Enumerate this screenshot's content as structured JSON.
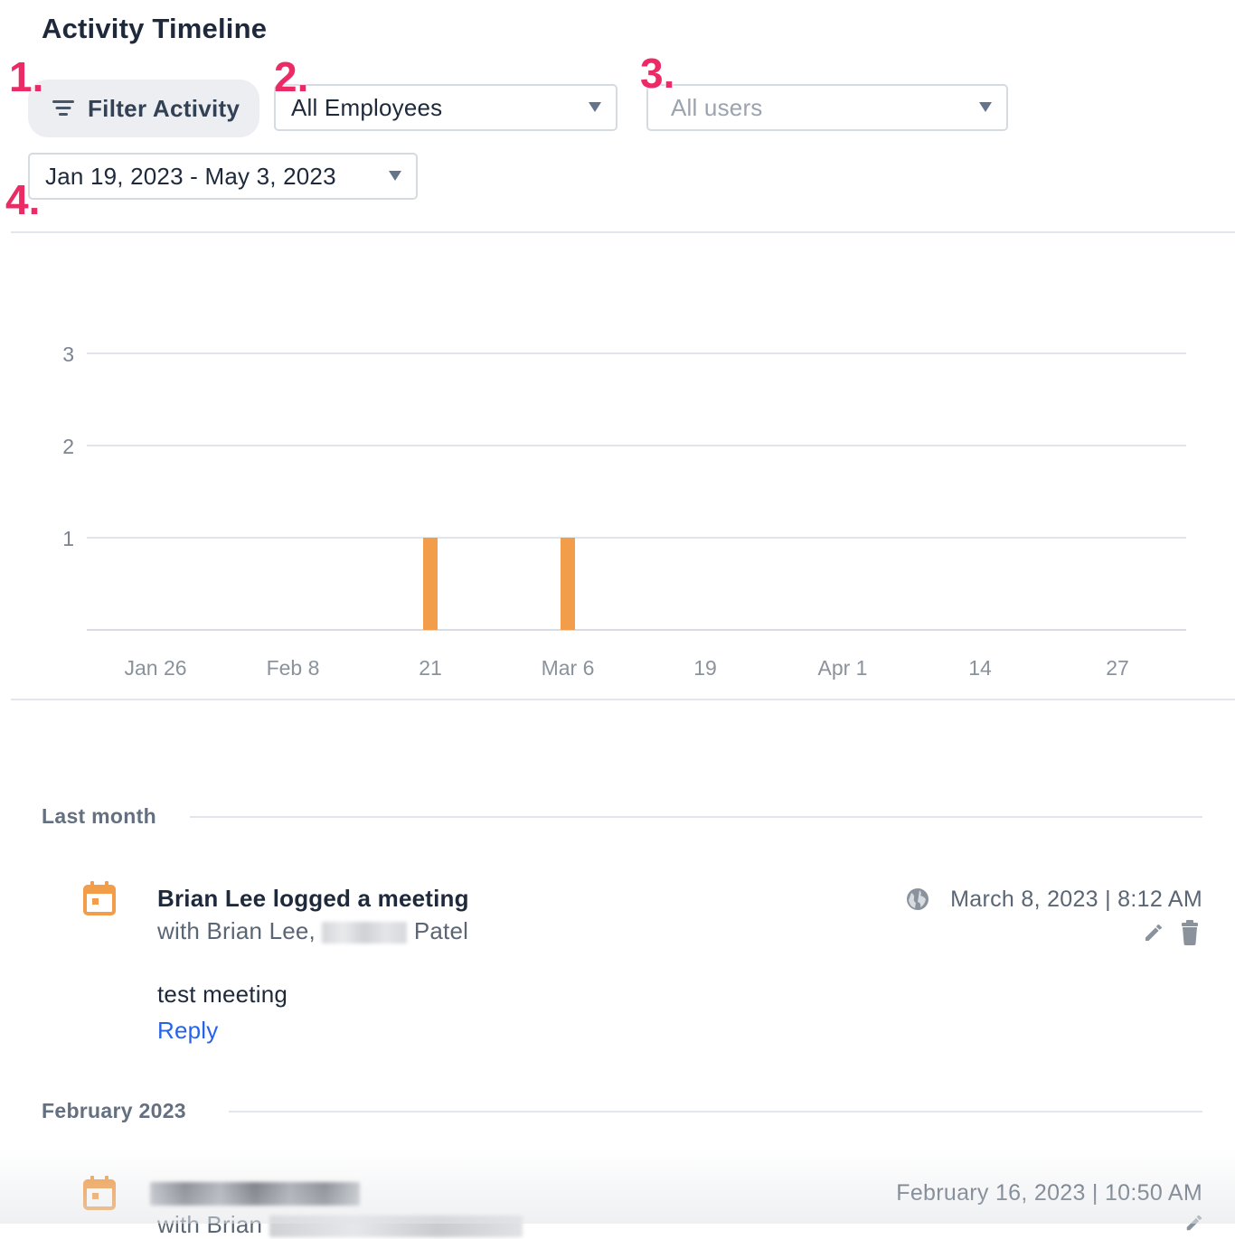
{
  "header": {
    "title": "Activity Timeline"
  },
  "steps": [
    "1.",
    "2.",
    "3.",
    "4."
  ],
  "filters": {
    "filter_button_label": "Filter Activity",
    "employees_select": "All Employees",
    "users_select_placeholder": "All users",
    "date_range": "Jan 19, 2023 - May 3, 2023"
  },
  "colors": {
    "bar": "#f29d49",
    "accent_step": "#ec2a66",
    "link": "#2563eb"
  },
  "chart_data": {
    "type": "bar",
    "x_tick_labels": [
      "Jan 26",
      "Feb 8",
      "21",
      "Mar 6",
      "19",
      "Apr 1",
      "14",
      "27"
    ],
    "y_tick_labels": [
      "1",
      "2",
      "3"
    ],
    "ylim": [
      0,
      3
    ],
    "grid": true,
    "series": [
      {
        "values": [
          {
            "x": "2023-02-21",
            "y": 1
          },
          {
            "x": "2023-03-06",
            "y": 1
          }
        ]
      }
    ]
  },
  "timeline": {
    "groups": [
      {
        "label": "Last month",
        "items": [
          {
            "title": "Brian Lee logged a meeting",
            "with_prefix": "with Brian Lee,",
            "with_suffix": "Patel",
            "timestamp": "March 8, 2023 | 8:12 AM",
            "body": "test meeting",
            "reply_label": "Reply",
            "icon": "calendar-icon"
          }
        ]
      },
      {
        "label": "February 2023",
        "items": [
          {
            "timestamp": "February 16, 2023 | 10:50 AM",
            "with_prefix": "with Brian",
            "icon": "calendar-icon"
          }
        ]
      }
    ]
  }
}
